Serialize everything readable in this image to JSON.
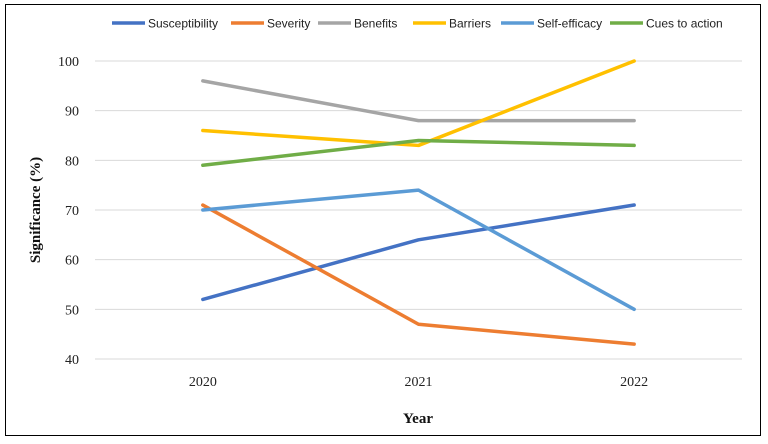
{
  "chart_data": {
    "type": "line",
    "title": "",
    "xlabel": "Year",
    "ylabel": "Significance (%)",
    "categories": [
      "2020",
      "2021",
      "2022"
    ],
    "ylim": [
      40,
      100
    ],
    "yticks": [
      40,
      50,
      60,
      70,
      80,
      90,
      100
    ],
    "grid": true,
    "legend_position": "top",
    "series": [
      {
        "name": "Susceptibility",
        "color": "#4472C4",
        "values": [
          52,
          64,
          71
        ]
      },
      {
        "name": "Severity",
        "color": "#ED7D31",
        "values": [
          71,
          47,
          43
        ]
      },
      {
        "name": "Benefits",
        "color": "#A5A5A5",
        "values": [
          96,
          88,
          88
        ]
      },
      {
        "name": "Barriers",
        "color": "#FFC000",
        "values": [
          86,
          83,
          100
        ]
      },
      {
        "name": "Self-efficacy",
        "color": "#5B9BD5",
        "values": [
          70,
          74,
          50
        ]
      },
      {
        "name": "Cues to action",
        "color": "#70AD47",
        "values": [
          79,
          84,
          83
        ]
      }
    ]
  }
}
